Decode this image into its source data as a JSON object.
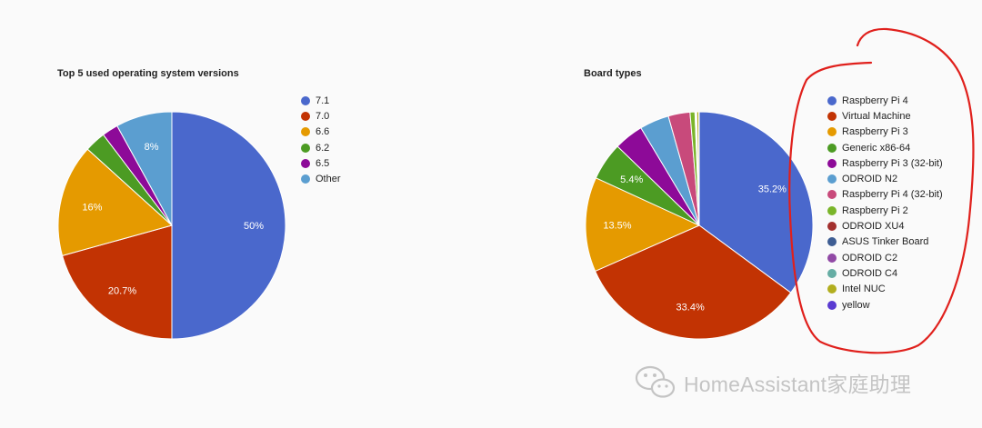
{
  "chart_data": [
    {
      "type": "pie",
      "title": "Top 5 used operating system versions",
      "legend_position": "right",
      "slices": [
        {
          "label": "7.1",
          "value": 50.0,
          "display": "50%",
          "color": "#4a68cc"
        },
        {
          "label": "7.0",
          "value": 20.7,
          "display": "20.7%",
          "color": "#c23303"
        },
        {
          "label": "6.6",
          "value": 16.0,
          "display": "16%",
          "color": "#e59a00"
        },
        {
          "label": "6.2",
          "value": 3.0,
          "display": "",
          "color": "#4c9b23"
        },
        {
          "label": "6.5",
          "value": 2.3,
          "display": "",
          "color": "#8d0a98"
        },
        {
          "label": "Other",
          "value": 8.0,
          "display": "8%",
          "color": "#5b9ed0"
        }
      ]
    },
    {
      "type": "pie",
      "title": "Board types",
      "legend_position": "right",
      "slices": [
        {
          "label": "Raspberry Pi 4",
          "value": 35.2,
          "display": "35.2%",
          "color": "#4a68cc"
        },
        {
          "label": "Virtual Machine",
          "value": 33.4,
          "display": "33.4%",
          "color": "#c23303"
        },
        {
          "label": "Raspberry Pi 3",
          "value": 13.5,
          "display": "13.5%",
          "color": "#e59a00"
        },
        {
          "label": "Generic x86-64",
          "value": 5.4,
          "display": "5.4%",
          "color": "#4c9b23"
        },
        {
          "label": "Raspberry Pi 3 (32-bit)",
          "value": 4.2,
          "display": "",
          "color": "#8d0a98"
        },
        {
          "label": "ODROID N2",
          "value": 4.2,
          "display": "",
          "color": "#5b9ed0"
        },
        {
          "label": "Raspberry Pi 4 (32-bit)",
          "value": 3.1,
          "display": "",
          "color": "#c84a7b"
        },
        {
          "label": "Raspberry Pi 2",
          "value": 0.7,
          "display": "",
          "color": "#7ab52a"
        },
        {
          "label": "ODROID XU4",
          "value": 0.1,
          "display": "",
          "color": "#a3302e"
        },
        {
          "label": "ASUS Tinker Board",
          "value": 0.05,
          "display": "",
          "color": "#3e5d93"
        },
        {
          "label": "ODROID C2",
          "value": 0.05,
          "display": "",
          "color": "#9149a5"
        },
        {
          "label": "ODROID C4",
          "value": 0.05,
          "display": "",
          "color": "#66ada4"
        },
        {
          "label": "Intel NUC",
          "value": 0.3,
          "display": "",
          "color": "#b2ae1f"
        },
        {
          "label": "yellow",
          "value": 0.05,
          "display": "",
          "color": "#5a3bd1"
        }
      ]
    }
  ],
  "watermark": {
    "text": "HomeAssistant家庭助理",
    "icon": "wechat-icon"
  },
  "annotation": {
    "color": "#e0201c",
    "description": "hand-drawn-circle-around-board-legend"
  }
}
